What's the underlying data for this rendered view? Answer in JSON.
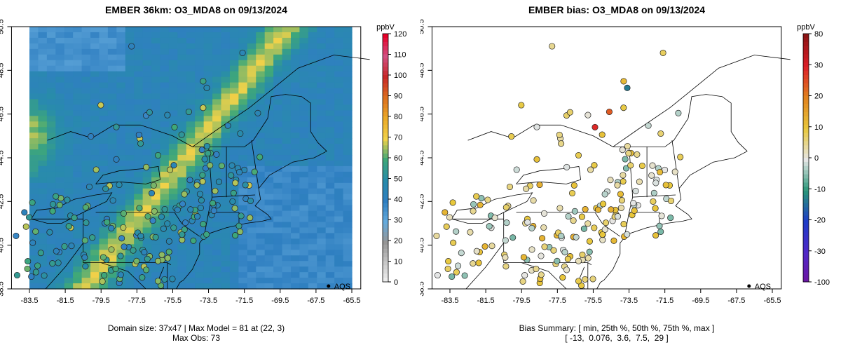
{
  "left": {
    "title": "EMBER 36km: O3_MDA8 on 09/13/2024",
    "footer_line1": "Domain size: 37x47 | Max Model = 81 at (22, 3)",
    "footer_line2": "Max Obs: 73",
    "colorbar": {
      "unit": "ppbV",
      "ticks": [
        "0",
        "10",
        "20",
        "30",
        "40",
        "50",
        "60",
        "70",
        "80",
        "90",
        "100",
        "110",
        "120"
      ],
      "range": [
        0,
        120
      ]
    }
  },
  "right": {
    "title": "EMBER bias: O3_MDA8 on 09/13/2024",
    "footer_line1": "Bias Summary: [ min, 25th %, 50th %, 75th %, max ]",
    "footer_line2": "[ -13,  0.076,  3.6,  7.5,  29 ]",
    "colorbar": {
      "unit": "ppbV",
      "ticks": [
        "-100",
        "-30",
        "-20",
        "-10",
        "0",
        "10",
        "20",
        "30",
        "80"
      ],
      "range": [
        -100,
        80
      ]
    },
    "bias_summary": {
      "min": -13,
      "p25": 0.076,
      "p50": 3.6,
      "p75": 7.5,
      "max": 29
    }
  },
  "map": {
    "lon_ticks": [
      "-83.5",
      "-81.5",
      "-79.5",
      "-77.5",
      "-75.5",
      "-73.5",
      "-71.5",
      "-69.5",
      "-67.5",
      "-65.5"
    ],
    "lat_ticks": [
      "38.5",
      "40.5",
      "42.5",
      "44.5",
      "46.5",
      "48.5",
      "50.5"
    ],
    "lon_range": [
      -84.5,
      -65.0
    ],
    "lat_range": [
      38.5,
      50.5
    ],
    "legend_label": "AQS"
  },
  "colors": {
    "ozone_low": "#2f7fc1",
    "ozone_mid": "#3fa878",
    "ozone_high": "#f0d24a",
    "bias_positive": "#e0a030",
    "bias_negative": "#3aa08a"
  }
}
